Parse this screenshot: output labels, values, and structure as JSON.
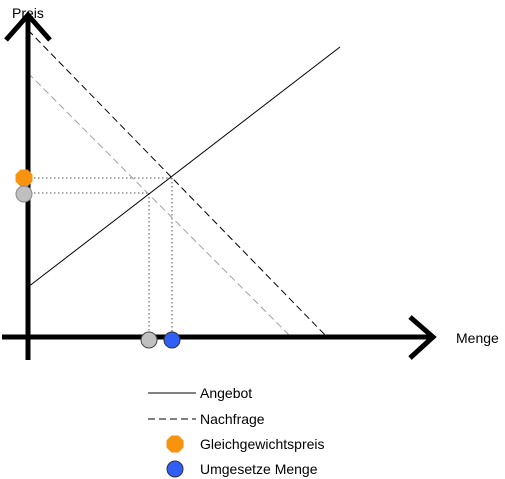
{
  "axes": {
    "y_label": "Preis",
    "x_label": "Menge"
  },
  "legend": {
    "supply": "Angebot",
    "demand": "Nachfrage",
    "equilibrium_price": "Gleichgewichtspreis",
    "quantity_traded": "Umgesetze Menge"
  },
  "colors": {
    "axis": "#000000",
    "supply_line": "#000000",
    "demand_line": "#000000",
    "shifted_demand_line": "#a0a0a0",
    "guide_dotted": "#555555",
    "equilibrium_marker": "#f7930f",
    "quantity_marker": "#2f5ff5",
    "shifted_marker": "#c0c0c0",
    "marker_outline": "#444444"
  },
  "icons": {
    "arrow": "arrowhead-open",
    "equilibrium_marker": "octagon-marker",
    "quantity_marker": "circle-marker"
  }
}
